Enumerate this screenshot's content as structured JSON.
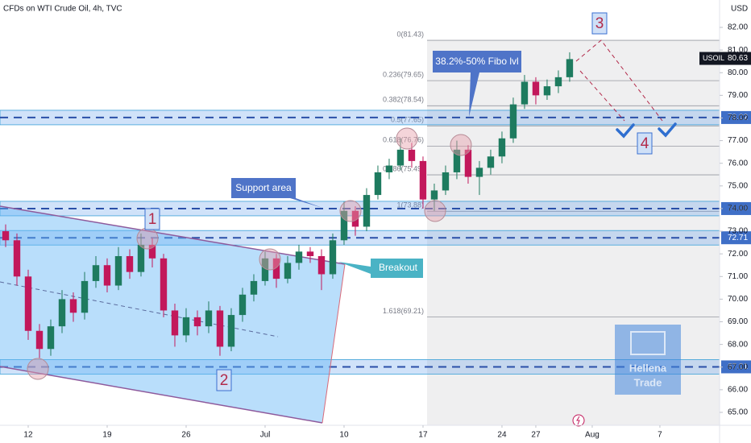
{
  "header": {
    "title": "CFDs on WTI Crude Oil, 4h, TVC",
    "currency": "USD"
  },
  "annotations": {
    "fibo": "38.2%-50% Fibo lvl",
    "support": "Support area",
    "breakout": "Breakout"
  },
  "waves": [
    "1",
    "2",
    "3",
    "4"
  ],
  "watermark": {
    "line1": "Hellena",
    "line2": "Trade"
  },
  "chart_data": {
    "type": "candlestick",
    "up_color": "#1e7b5f",
    "down_color": "#c2185b",
    "x": [
      -2,
      -1,
      0,
      1,
      2,
      3,
      4,
      5,
      6,
      7,
      8,
      9,
      10,
      11,
      12,
      13,
      14,
      15,
      16,
      17,
      18,
      19,
      20,
      21,
      22,
      23,
      24,
      25,
      26,
      27,
      28,
      29,
      30,
      31,
      32,
      33,
      34,
      35,
      36,
      37,
      38,
      39,
      40,
      41,
      42,
      43,
      44,
      45,
      46,
      47,
      48
    ],
    "open": [
      73.0,
      72.6,
      71.0,
      68.6,
      67.8,
      68.8,
      70.0,
      69.4,
      70.8,
      71.5,
      70.6,
      71.9,
      71.2,
      72.4,
      71.8,
      69.5,
      68.4,
      69.2,
      68.8,
      69.5,
      67.9,
      69.3,
      70.2,
      70.8,
      71.8,
      70.9,
      71.6,
      72.1,
      71.9,
      71.1,
      72.6,
      73.9,
      73.2,
      74.6,
      75.6,
      75.9,
      76.6,
      76.1,
      74.4,
      74.8,
      75.6,
      76.6,
      75.4,
      75.8,
      76.3,
      77.1,
      78.6,
      79.6,
      79.0,
      79.4,
      79.8
    ],
    "high": [
      73.3,
      72.9,
      71.3,
      68.9,
      69.1,
      70.4,
      70.3,
      71.2,
      71.9,
      71.8,
      72.3,
      72.2,
      72.9,
      72.7,
      72.0,
      69.8,
      69.6,
      69.5,
      69.9,
      69.7,
      69.6,
      70.5,
      71.1,
      72.1,
      72.0,
      71.9,
      72.4,
      72.3,
      72.2,
      72.9,
      74.3,
      74.1,
      74.9,
      75.9,
      76.2,
      77.1,
      76.9,
      76.3,
      75.1,
      75.9,
      77.0,
      76.8,
      76.1,
      76.6,
      77.4,
      78.9,
      79.9,
      79.8,
      79.7,
      80.1,
      80.9
    ],
    "low": [
      72.3,
      70.6,
      68.2,
      67.4,
      67.5,
      68.5,
      69.0,
      69.1,
      70.5,
      70.3,
      70.4,
      70.9,
      71.0,
      71.4,
      69.2,
      67.9,
      68.1,
      68.4,
      68.5,
      67.5,
      67.7,
      69.0,
      69.9,
      70.6,
      70.5,
      70.7,
      71.3,
      71.6,
      70.4,
      70.9,
      72.4,
      72.8,
      73.0,
      74.4,
      75.3,
      75.7,
      75.8,
      74.0,
      73.9,
      74.6,
      75.3,
      75.1,
      74.6,
      75.5,
      76.0,
      76.9,
      78.4,
      78.6,
      78.8,
      79.1,
      79.6
    ],
    "close": [
      72.6,
      71.0,
      68.6,
      67.8,
      68.8,
      70.0,
      69.4,
      70.8,
      71.5,
      70.6,
      71.9,
      71.2,
      72.4,
      71.8,
      69.5,
      68.4,
      69.2,
      68.8,
      69.5,
      67.9,
      69.3,
      70.2,
      70.8,
      71.8,
      70.9,
      71.6,
      72.1,
      71.9,
      71.1,
      72.6,
      73.9,
      73.2,
      74.6,
      75.6,
      75.9,
      76.6,
      76.1,
      74.4,
      74.8,
      75.6,
      76.6,
      75.4,
      75.8,
      76.3,
      77.1,
      78.6,
      79.6,
      79.0,
      79.4,
      79.8,
      80.6
    ],
    "xlim": [
      -2.5,
      61.29
    ],
    "xticks": [
      {
        "value": 0,
        "label": "12"
      },
      {
        "value": 7,
        "label": "19"
      },
      {
        "value": 14,
        "label": "26"
      },
      {
        "value": 21,
        "label": "Jul"
      },
      {
        "value": 28,
        "label": "10"
      },
      {
        "value": 35,
        "label": "17"
      },
      {
        "value": 42,
        "label": "24"
      },
      {
        "value": 45,
        "label": "27"
      },
      {
        "value": 50,
        "label": "Aug"
      },
      {
        "value": 56,
        "label": "7"
      }
    ],
    "ylim": [
      64.43,
      83.21
    ],
    "yticks": [
      {
        "value": 65,
        "label": "65.00"
      },
      {
        "value": 66,
        "label": "66.00"
      },
      {
        "value": 67,
        "label": "67.00"
      },
      {
        "value": 68,
        "label": "68.00"
      },
      {
        "value": 69,
        "label": "69.00"
      },
      {
        "value": 70,
        "label": "70.00"
      },
      {
        "value": 71,
        "label": "71.00"
      },
      {
        "value": 72,
        "label": "72.00"
      },
      {
        "value": 73,
        "label": "73.00"
      },
      {
        "value": 74,
        "label": "74.00"
      },
      {
        "value": 75,
        "label": "75.00"
      },
      {
        "value": 76,
        "label": "76.00"
      },
      {
        "value": 77,
        "label": "77.00"
      },
      {
        "value": 78,
        "label": "78.00"
      },
      {
        "value": 79,
        "label": "79.00"
      },
      {
        "value": 80,
        "label": "80.00"
      },
      {
        "value": 81,
        "label": "81.00"
      },
      {
        "value": 82,
        "label": "82.00"
      }
    ],
    "levels": [
      78.02,
      {
        "value": 74,
        "label": "74.00"
      },
      72.71,
      67.01
    ],
    "last_price": {
      "symbol": "USOIL",
      "value": 80.63
    },
    "fib": [
      {
        "label": "0(81.43)",
        "price": 81.43
      },
      {
        "label": "0.236(79.65)",
        "price": 79.65
      },
      {
        "label": "0.382(78.54)",
        "price": 78.54
      },
      {
        "label": "0.5(77.65)",
        "price": 77.65
      },
      {
        "label": "0.618(76.76)",
        "price": 76.76
      },
      {
        "label": "0.786(75.49)",
        "price": 75.49
      },
      {
        "label": "1(73.88)",
        "price": 73.88
      },
      {
        "label": "1.618(69.21)",
        "price": 69.21
      }
    ]
  }
}
